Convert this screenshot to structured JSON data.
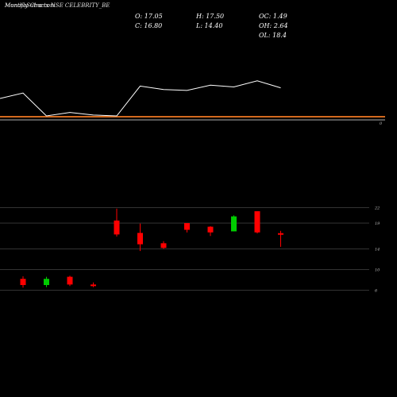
{
  "title": {
    "prefix": "MunafaSutra.com",
    "overlay": "Monthly Charts NSE CELEBRITY_BE"
  },
  "stats": {
    "open": "O: 17.05",
    "close": "C: 16.80",
    "high": "H: 17.50",
    "low": "L: 14.40",
    "oc": "OC: 1.49",
    "oh": "OH: 2.64",
    "ol": "OL: 18.4"
  },
  "colors": {
    "background": "#000000",
    "up": "#00cc00",
    "down": "#ff0000",
    "line": "#ffffff",
    "band": "#d2691e",
    "grid": "#333333"
  },
  "chart_data": {
    "type": "candlestick",
    "title": "Monthly Charts NSE CELEBRITY_BE",
    "ylim": [
      5,
      23
    ],
    "y_ticks": [
      6,
      10,
      14,
      19,
      22
    ],
    "right_label_upper": "0",
    "series": [
      {
        "name": "",
        "candles": [
          {
            "o": 8.2,
            "h": 8.7,
            "l": 6.5,
            "c": 7.0,
            "dir": "down"
          },
          {
            "o": 7.0,
            "h": 8.6,
            "l": 6.6,
            "c": 8.2,
            "dir": "up"
          },
          {
            "o": 8.6,
            "h": 8.8,
            "l": 6.8,
            "c": 7.1,
            "dir": "down"
          },
          {
            "o": 7.1,
            "h": 7.5,
            "l": 6.6,
            "c": 6.8,
            "dir": "down"
          },
          {
            "o": 19.5,
            "h": 21.8,
            "l": 16.4,
            "c": 16.8,
            "dir": "down"
          },
          {
            "o": 17.1,
            "h": 18.9,
            "l": 13.6,
            "c": 14.9,
            "dir": "down"
          },
          {
            "o": 15.1,
            "h": 15.5,
            "l": 14.0,
            "c": 14.2,
            "dir": "down"
          },
          {
            "o": 19.0,
            "h": 19.0,
            "l": 17.2,
            "c": 17.7,
            "dir": "down"
          },
          {
            "o": 18.3,
            "h": 18.4,
            "l": 16.5,
            "c": 17.2,
            "dir": "down"
          },
          {
            "o": 17.4,
            "h": 20.5,
            "l": 17.4,
            "c": 20.3,
            "dir": "up"
          },
          {
            "o": 21.3,
            "h": 21.3,
            "l": 17.0,
            "c": 17.2,
            "dir": "down"
          },
          {
            "o": 17.05,
            "h": 17.5,
            "l": 14.4,
            "c": 16.8,
            "dir": "down"
          }
        ]
      }
    ],
    "upper_line": [
      106,
      132,
      128,
      131,
      132,
      98,
      102,
      103,
      97,
      99,
      92,
      100
    ]
  }
}
